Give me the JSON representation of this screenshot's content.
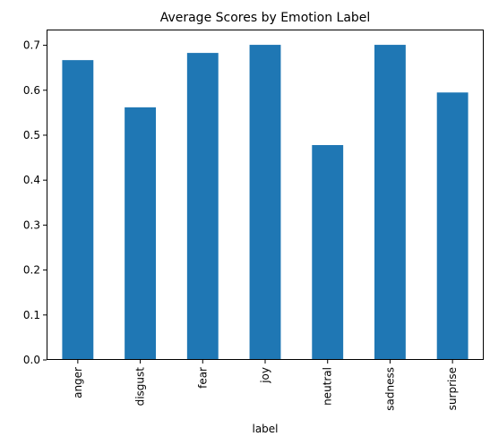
{
  "chart_data": {
    "type": "bar",
    "title": "Average Scores by Emotion Label",
    "xlabel": "label",
    "ylabel": "",
    "categories": [
      "anger",
      "disgust",
      "fear",
      "joy",
      "neutral",
      "sadness",
      "surprise"
    ],
    "values": [
      0.667,
      0.562,
      0.683,
      0.701,
      0.478,
      0.701,
      0.595
    ],
    "ylim": [
      0,
      0.735
    ],
    "yticks": [
      0.0,
      0.1,
      0.2,
      0.3,
      0.4,
      0.5,
      0.6,
      0.7
    ],
    "ytick_labels": [
      "0.0",
      "0.1",
      "0.2",
      "0.3",
      "0.4",
      "0.5",
      "0.6",
      "0.7"
    ],
    "bar_color": "#1f77b4",
    "grid": false,
    "legend": "none"
  }
}
